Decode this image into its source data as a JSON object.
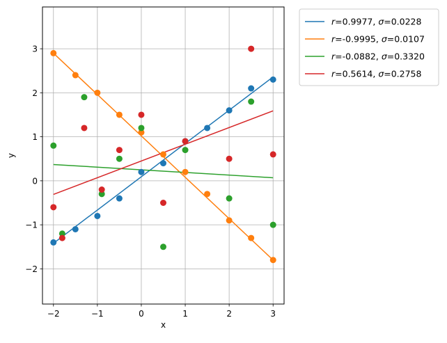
{
  "chart_data": {
    "type": "scatter",
    "xlabel": "x",
    "ylabel": "y",
    "xlim": [
      -2.25,
      3.25
    ],
    "ylim": [
      -2.8,
      3.95
    ],
    "xticks": [
      -2,
      -1,
      0,
      1,
      2,
      3
    ],
    "yticks": [
      -2,
      -1,
      0,
      1,
      2,
      3
    ],
    "grid": true,
    "legend_position": "outside-top-right",
    "series": [
      {
        "name": "r=0.9977, σ=0.0228",
        "label_r": "0.9977",
        "label_sigma": "0.0228",
        "color": "#1f77b4",
        "x": [
          -2,
          -1.5,
          -1,
          -0.5,
          0,
          0.5,
          1,
          1.5,
          2,
          2.5,
          3
        ],
        "y": [
          -1.4,
          -1.1,
          -0.8,
          -0.4,
          0.2,
          0.4,
          0.9,
          1.2,
          1.6,
          2.1,
          2.3
        ],
        "fit": {
          "x": [
            -2,
            3
          ],
          "y": [
            -1.42,
            2.36
          ]
        }
      },
      {
        "name": "r=-0.9995, σ=0.0107",
        "label_r": "-0.9995",
        "label_sigma": "0.0107",
        "color": "#ff7f0e",
        "x": [
          -2,
          -1.5,
          -1,
          -0.5,
          0,
          0.5,
          1,
          1.5,
          2,
          2.5,
          3
        ],
        "y": [
          2.9,
          2.4,
          2.0,
          1.5,
          1.1,
          0.6,
          0.2,
          -0.3,
          -0.9,
          -1.3,
          -1.8
        ],
        "fit": {
          "x": [
            -2,
            3
          ],
          "y": [
            2.9,
            -1.8
          ]
        }
      },
      {
        "name": "r=-0.0882, σ=0.3320",
        "label_r": "-0.0882",
        "label_sigma": "0.3320",
        "color": "#2ca02c",
        "x": [
          -2,
          -1.8,
          -1.3,
          -0.9,
          -0.5,
          0,
          0.5,
          1,
          2,
          2.5,
          3
        ],
        "y": [
          0.8,
          -1.2,
          1.9,
          -0.3,
          0.5,
          1.2,
          -1.5,
          0.7,
          -0.4,
          1.8,
          -1.0
        ],
        "fit": {
          "x": [
            -2,
            3
          ],
          "y": [
            0.37,
            0.07
          ]
        }
      },
      {
        "name": "r=0.5614, σ=0.2758",
        "label_r": "0.5614",
        "label_sigma": "0.2758",
        "color": "#d62728",
        "x": [
          -2,
          -1.8,
          -1.3,
          -0.9,
          -0.5,
          0,
          0.5,
          1,
          2,
          2.5,
          3
        ],
        "y": [
          -0.6,
          -1.3,
          1.2,
          -0.2,
          0.7,
          1.5,
          -0.5,
          0.9,
          0.5,
          3.0,
          0.6
        ],
        "fit": {
          "x": [
            -2,
            3
          ],
          "y": [
            -0.31,
            1.59
          ]
        }
      }
    ]
  }
}
